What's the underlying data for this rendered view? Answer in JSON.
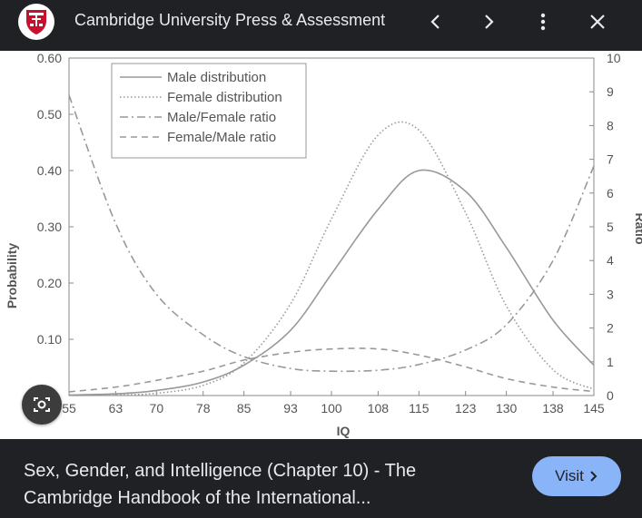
{
  "header": {
    "site_title": "Cambridge University Press & Assessment",
    "logo_icon": "cambridge-shield-icon",
    "prev_icon": "chevron-left-icon",
    "next_icon": "chevron-right-icon",
    "more_icon": "more-vert-icon",
    "close_icon": "close-icon"
  },
  "caption": {
    "line1": "Sex, Gender, and Intelligence (Chapter 10) - The",
    "line2": "Cambridge Handbook of the International..."
  },
  "visit": {
    "label": "Visit",
    "icon": "chevron-right-icon"
  },
  "lens": {
    "icon": "lens-camera-icon"
  },
  "colors": {
    "accent": "#8ab4f8",
    "background": "#202124",
    "curve": "#999999",
    "logo_red": "#c8102e"
  },
  "chart_data": {
    "type": "line",
    "title": "",
    "xlabel": "IQ",
    "ylabel": "Probability",
    "y2label": "Ratio",
    "x_ticks": [
      "55",
      "63",
      "70",
      "78",
      "85",
      "93",
      "100",
      "108",
      "115",
      "123",
      "130",
      "138",
      "145"
    ],
    "y_ticks": [
      "0.10",
      "0.20",
      "0.30",
      "0.40",
      "0.50",
      "0.60"
    ],
    "y2_ticks": [
      "0",
      "1",
      "2",
      "3",
      "4",
      "5",
      "6",
      "7",
      "8",
      "9",
      "10"
    ],
    "xlim": [
      55,
      145
    ],
    "ylim": [
      0,
      0.6
    ],
    "y2lim": [
      0,
      10
    ],
    "legend_position": "top-left",
    "grid": false,
    "series": [
      {
        "name": "Male distribution",
        "axis": "left",
        "dash": "solid",
        "x": [
          55,
          63,
          70,
          78,
          85,
          93,
          100,
          108,
          115,
          123,
          130,
          138,
          145
        ],
        "y": [
          0.001,
          0.003,
          0.009,
          0.024,
          0.054,
          0.116,
          0.216,
          0.331,
          0.4,
          0.363,
          0.263,
          0.134,
          0.054
        ]
      },
      {
        "name": "Female distribution",
        "axis": "left",
        "dash": "dotted",
        "x": [
          55,
          63,
          70,
          78,
          85,
          93,
          100,
          108,
          115,
          123,
          130,
          138,
          145
        ],
        "y": [
          0.0,
          0.001,
          0.004,
          0.018,
          0.058,
          0.163,
          0.314,
          0.463,
          0.472,
          0.325,
          0.159,
          0.046,
          0.011
        ]
      },
      {
        "name": "Male/Female ratio",
        "axis": "right",
        "dash": "dashdot",
        "x": [
          55,
          63,
          70,
          78,
          85,
          93,
          100,
          108,
          115,
          123,
          130,
          138,
          145
        ],
        "y": [
          8.9,
          5.1,
          3.0,
          1.8,
          1.15,
          0.8,
          0.72,
          0.75,
          0.92,
          1.35,
          2.1,
          4.0,
          6.8
        ]
      },
      {
        "name": "Female/Male ratio",
        "axis": "right",
        "dash": "dashed",
        "x": [
          55,
          63,
          70,
          78,
          85,
          93,
          100,
          108,
          115,
          123,
          130,
          138,
          145
        ],
        "y": [
          0.11,
          0.25,
          0.45,
          0.72,
          1.05,
          1.28,
          1.38,
          1.38,
          1.2,
          0.85,
          0.5,
          0.25,
          0.12
        ]
      }
    ]
  }
}
